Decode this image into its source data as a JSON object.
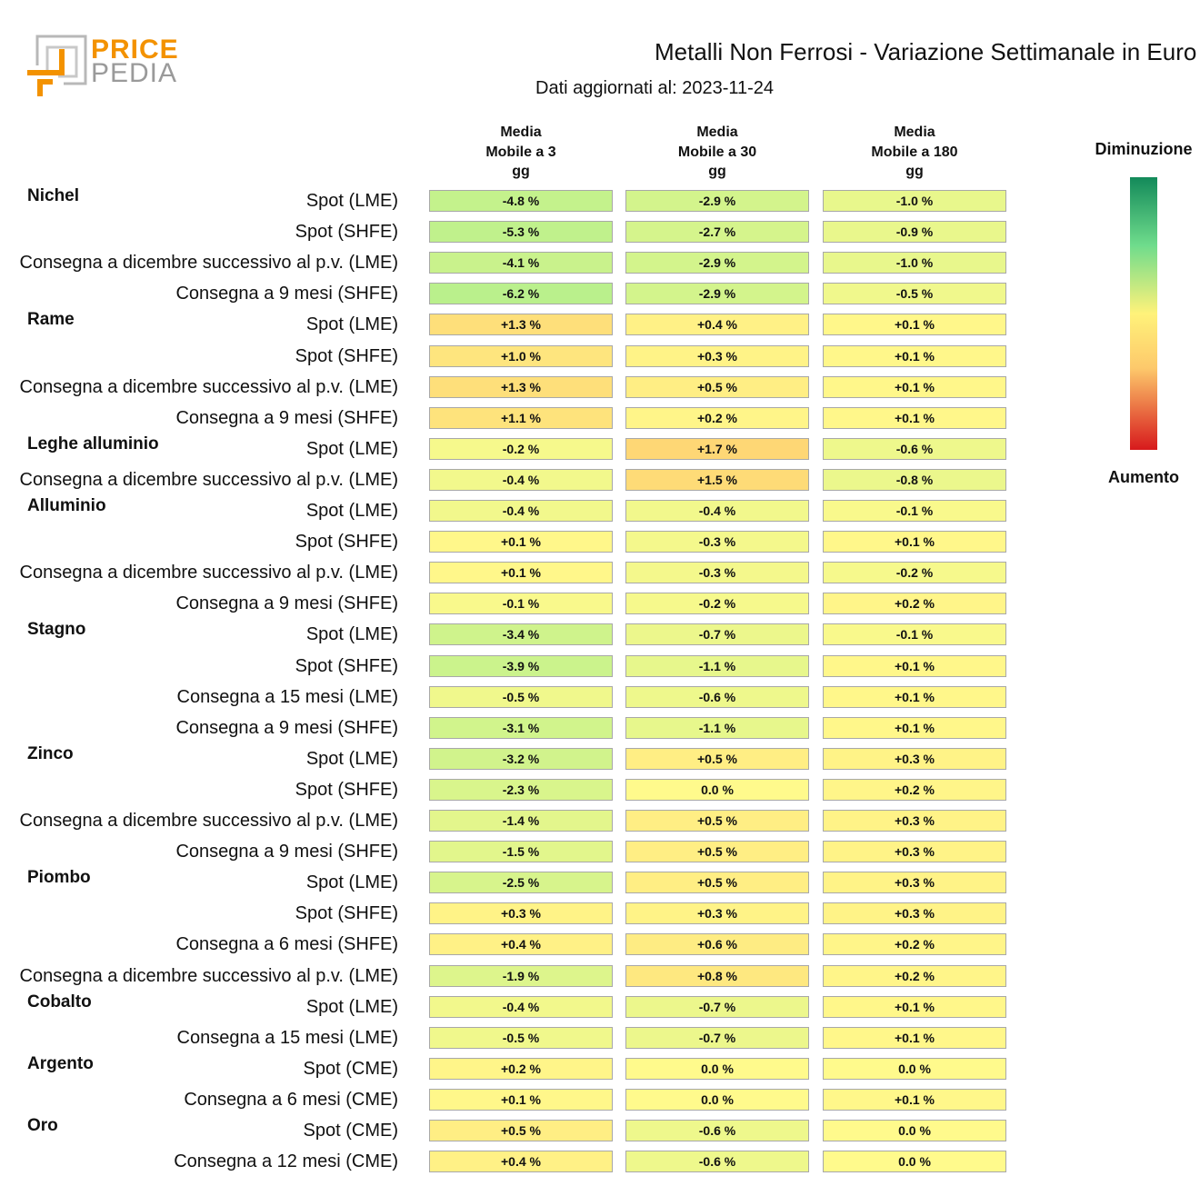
{
  "logo": {
    "line1": "PRICE",
    "line2": "PEDIA",
    "colors": {
      "orange": "#f39200",
      "gray": "#9a9a9a"
    }
  },
  "chart_data": {
    "type": "heatmap",
    "title": "Metalli Non Ferrosi - Variazione Settimanale in Euro",
    "subtitle": "Dati aggiornati al: 2023-11-24",
    "columns": [
      "Media\nMobile a 3\ngg",
      "Media\nMobile a 30\ngg",
      "Media\nMobile a 180\ngg"
    ],
    "unit": "%",
    "legend": {
      "top_label": "Diminuzione",
      "bottom_label": "Aumento",
      "placement": "right",
      "colors": [
        "#138a5a",
        "#6fdc8c",
        "#fff27a",
        "#fdc96b",
        "#d7191c"
      ]
    },
    "groups": [
      {
        "name": "Nichel",
        "rows": [
          {
            "label": "Spot (LME)",
            "values": [
              -4.8,
              -2.9,
              -1.0
            ]
          },
          {
            "label": "Spot (SHFE)",
            "values": [
              -5.3,
              -2.7,
              -0.9
            ]
          },
          {
            "label": "Consegna a dicembre successivo al p.v. (LME)",
            "values": [
              -4.1,
              -2.9,
              -1.0
            ]
          },
          {
            "label": "Consegna a 9 mesi (SHFE)",
            "values": [
              -6.2,
              -2.9,
              -0.5
            ]
          }
        ]
      },
      {
        "name": "Rame",
        "rows": [
          {
            "label": "Spot (LME)",
            "values": [
              1.3,
              0.4,
              0.1
            ]
          },
          {
            "label": "Spot (SHFE)",
            "values": [
              1.0,
              0.3,
              0.1
            ]
          },
          {
            "label": "Consegna a dicembre successivo al p.v. (LME)",
            "values": [
              1.3,
              0.5,
              0.1
            ]
          },
          {
            "label": "Consegna a 9 mesi (SHFE)",
            "values": [
              1.1,
              0.2,
              0.1
            ]
          }
        ]
      },
      {
        "name": "Leghe alluminio",
        "rows": [
          {
            "label": "Spot (LME)",
            "values": [
              -0.2,
              1.7,
              -0.6
            ]
          },
          {
            "label": "Consegna a dicembre successivo al p.v. (LME)",
            "values": [
              -0.4,
              1.5,
              -0.8
            ]
          }
        ]
      },
      {
        "name": "Alluminio",
        "rows": [
          {
            "label": "Spot (LME)",
            "values": [
              -0.4,
              -0.4,
              -0.1
            ]
          },
          {
            "label": "Spot (SHFE)",
            "values": [
              0.1,
              -0.3,
              0.1
            ]
          },
          {
            "label": "Consegna a dicembre successivo al p.v. (LME)",
            "values": [
              0.1,
              -0.3,
              -0.2
            ]
          },
          {
            "label": "Consegna a 9 mesi (SHFE)",
            "values": [
              -0.1,
              -0.2,
              0.2
            ]
          }
        ]
      },
      {
        "name": "Stagno",
        "rows": [
          {
            "label": "Spot (LME)",
            "values": [
              -3.4,
              -0.7,
              -0.1
            ]
          },
          {
            "label": "Spot (SHFE)",
            "values": [
              -3.9,
              -1.1,
              0.1
            ]
          },
          {
            "label": "Consegna a 15 mesi (LME)",
            "values": [
              -0.5,
              -0.6,
              0.1
            ]
          },
          {
            "label": "Consegna a 9 mesi (SHFE)",
            "values": [
              -3.1,
              -1.1,
              0.1
            ]
          }
        ]
      },
      {
        "name": "Zinco",
        "rows": [
          {
            "label": "Spot (LME)",
            "values": [
              -3.2,
              0.5,
              0.3
            ]
          },
          {
            "label": "Spot (SHFE)",
            "values": [
              -2.3,
              0.0,
              0.2
            ]
          },
          {
            "label": "Consegna a dicembre successivo al p.v. (LME)",
            "values": [
              -1.4,
              0.5,
              0.3
            ]
          },
          {
            "label": "Consegna a 9 mesi (SHFE)",
            "values": [
              -1.5,
              0.5,
              0.3
            ]
          }
        ]
      },
      {
        "name": "Piombo",
        "rows": [
          {
            "label": "Spot (LME)",
            "values": [
              -2.5,
              0.5,
              0.3
            ]
          },
          {
            "label": "Spot (SHFE)",
            "values": [
              0.3,
              0.3,
              0.3
            ]
          },
          {
            "label": "Consegna a 6 mesi (SHFE)",
            "values": [
              0.4,
              0.6,
              0.2
            ]
          },
          {
            "label": "Consegna a dicembre successivo al p.v. (LME)",
            "values": [
              -1.9,
              0.8,
              0.2
            ]
          }
        ]
      },
      {
        "name": "Cobalto",
        "rows": [
          {
            "label": "Spot (LME)",
            "values": [
              -0.4,
              -0.7,
              0.1
            ]
          },
          {
            "label": "Consegna a 15 mesi (LME)",
            "values": [
              -0.5,
              -0.7,
              0.1
            ]
          }
        ]
      },
      {
        "name": "Argento",
        "rows": [
          {
            "label": "Spot (CME)",
            "values": [
              0.2,
              0.0,
              0.0
            ]
          },
          {
            "label": "Consegna a 6 mesi (CME)",
            "values": [
              0.1,
              0.0,
              0.1
            ]
          }
        ]
      },
      {
        "name": "Oro",
        "rows": [
          {
            "label": "Spot (CME)",
            "values": [
              0.5,
              -0.6,
              0.0
            ]
          },
          {
            "label": "Consegna a 12 mesi (CME)",
            "values": [
              0.4,
              -0.6,
              0.0
            ]
          }
        ]
      }
    ]
  }
}
